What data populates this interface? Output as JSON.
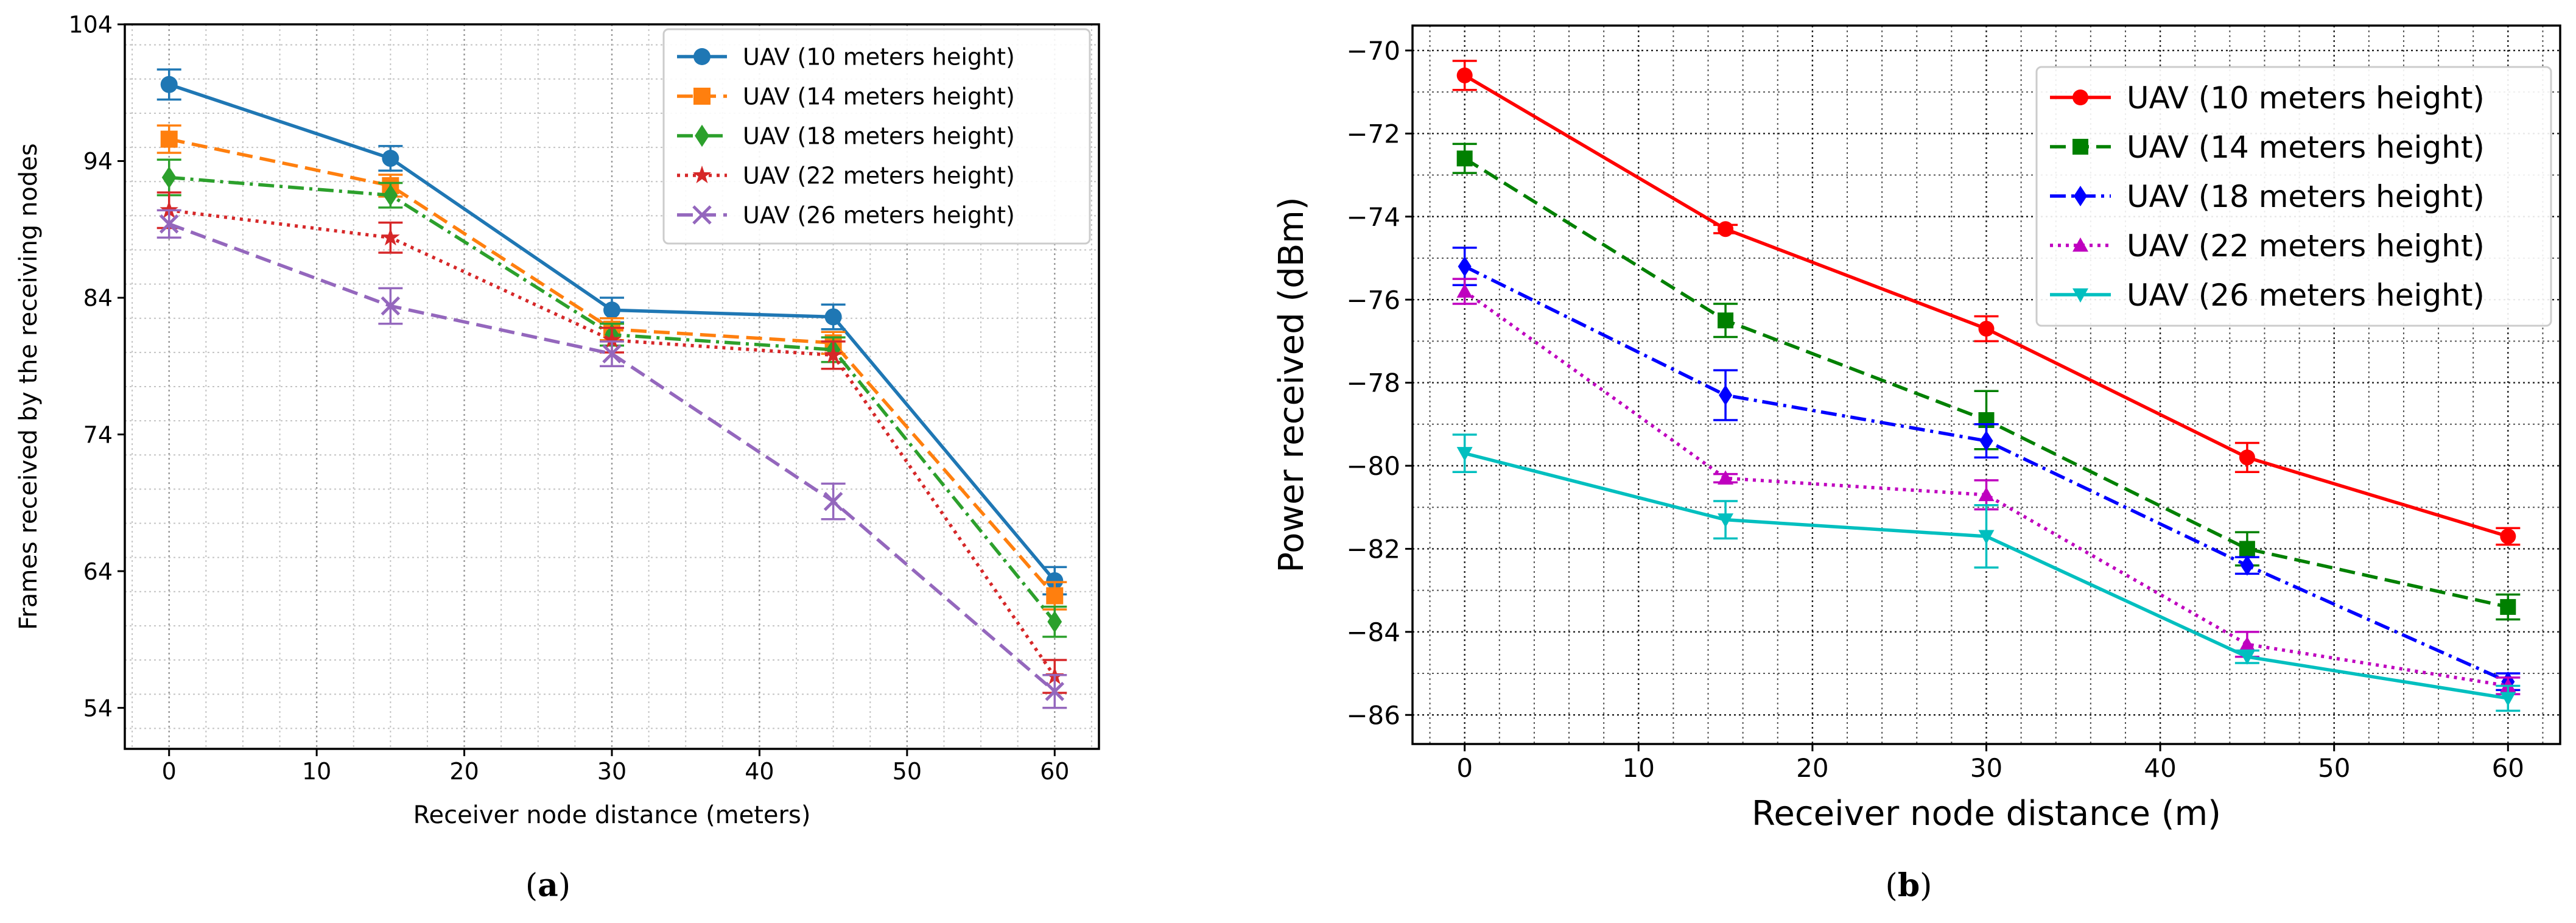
{
  "chart_data": [
    {
      "type": "line",
      "id": "a",
      "caption_prefix": "(",
      "caption_letter": "a",
      "caption_suffix": ")",
      "title": "",
      "xlabel": "Receiver node distance (meters)",
      "ylabel": "Frames received by the receiving nodes",
      "xlim": [
        -3,
        63
      ],
      "ylim": [
        51,
        104
      ],
      "xticks": [
        0,
        10,
        20,
        30,
        40,
        50,
        60
      ],
      "yticks": [
        54,
        64,
        74,
        84,
        94,
        104
      ],
      "grid": true,
      "legend_position": "top-right",
      "x": [
        0,
        15,
        30,
        45,
        60
      ],
      "series": [
        {
          "name": "UAV (10 meters height)",
          "color": "#1f77b4",
          "line": "solid",
          "marker": "circle",
          "values": [
            99.6,
            94.2,
            83.1,
            82.6,
            63.3
          ],
          "errors": [
            1.1,
            0.9,
            0.9,
            0.9,
            1.0
          ]
        },
        {
          "name": "UAV (14 meters height)",
          "color": "#ff7f0e",
          "line": "dashed",
          "marker": "square",
          "values": [
            95.6,
            92.2,
            81.7,
            80.7,
            62.2
          ],
          "errors": [
            1.0,
            0.8,
            0.8,
            0.8,
            1.0
          ]
        },
        {
          "name": "UAV (18 meters height)",
          "color": "#2ca02c",
          "line": "dashdot",
          "marker": "diamond",
          "values": [
            92.8,
            91.5,
            81.3,
            80.2,
            60.3
          ],
          "errors": [
            1.3,
            0.9,
            0.8,
            0.9,
            1.1
          ]
        },
        {
          "name": "UAV (22 meters height)",
          "color": "#d62728",
          "line": "dotted",
          "marker": "star",
          "values": [
            90.4,
            88.4,
            80.9,
            79.8,
            56.3
          ],
          "errors": [
            1.3,
            1.1,
            0.9,
            1.0,
            1.2
          ]
        },
        {
          "name": "UAV (26 meters height)",
          "color": "#9467bd",
          "line": "dashed",
          "marker": "x",
          "values": [
            89.4,
            83.4,
            79.9,
            69.1,
            55.2
          ],
          "errors": [
            1.0,
            1.3,
            0.9,
            1.3,
            1.2
          ]
        }
      ]
    },
    {
      "type": "line",
      "id": "b",
      "caption_prefix": "(",
      "caption_letter": "b",
      "caption_suffix": ")",
      "title": "",
      "xlabel": "Receiver node distance (m)",
      "ylabel": "Power received (dBm)",
      "xlim": [
        -3,
        63
      ],
      "ylim": [
        -86.7,
        -69.4
      ],
      "xticks": [
        0,
        10,
        20,
        30,
        40,
        50,
        60
      ],
      "yticks": [
        -86,
        -84,
        -82,
        -80,
        -78,
        -76,
        -74,
        -72,
        -70
      ],
      "ytick_labels": [
        "−86",
        "−84",
        "−82",
        "−80",
        "−78",
        "−76",
        "−74",
        "−72",
        "−70"
      ],
      "grid": true,
      "legend_position": "top-right",
      "x": [
        0,
        15,
        30,
        45,
        60
      ],
      "series": [
        {
          "name": "UAV (10 meters height)",
          "color": "#ff0000",
          "line": "solid",
          "marker": "circle",
          "values": [
            -70.6,
            -74.3,
            -76.7,
            -79.8,
            -81.7
          ],
          "errors": [
            0.35,
            0.1,
            0.3,
            0.35,
            0.2
          ]
        },
        {
          "name": "UAV (14 meters height)",
          "color": "#008000",
          "line": "dashed",
          "marker": "square",
          "values": [
            -72.6,
            -76.5,
            -78.9,
            -82.0,
            -83.4
          ],
          "errors": [
            0.35,
            0.4,
            0.7,
            0.4,
            0.3
          ]
        },
        {
          "name": "UAV (18 meters height)",
          "color": "#0000ff",
          "line": "dashdot",
          "marker": "diamond",
          "values": [
            -75.2,
            -78.3,
            -79.4,
            -82.4,
            -85.2
          ],
          "errors": [
            0.45,
            0.6,
            0.4,
            0.2,
            0.2
          ]
        },
        {
          "name": "UAV (22 meters height)",
          "color": "#bf00bf",
          "line": "dotted",
          "marker": "triangle-up",
          "values": [
            -75.8,
            -80.3,
            -80.7,
            -84.3,
            -85.3
          ],
          "errors": [
            0.3,
            0.1,
            0.35,
            0.3,
            0.2
          ]
        },
        {
          "name": "UAV (26 meters height)",
          "color": "#00bfbf",
          "line": "solid",
          "marker": "triangle-down",
          "values": [
            -79.7,
            -81.3,
            -81.7,
            -84.6,
            -85.6
          ],
          "errors": [
            0.45,
            0.45,
            0.75,
            0.15,
            0.3
          ]
        }
      ]
    }
  ]
}
